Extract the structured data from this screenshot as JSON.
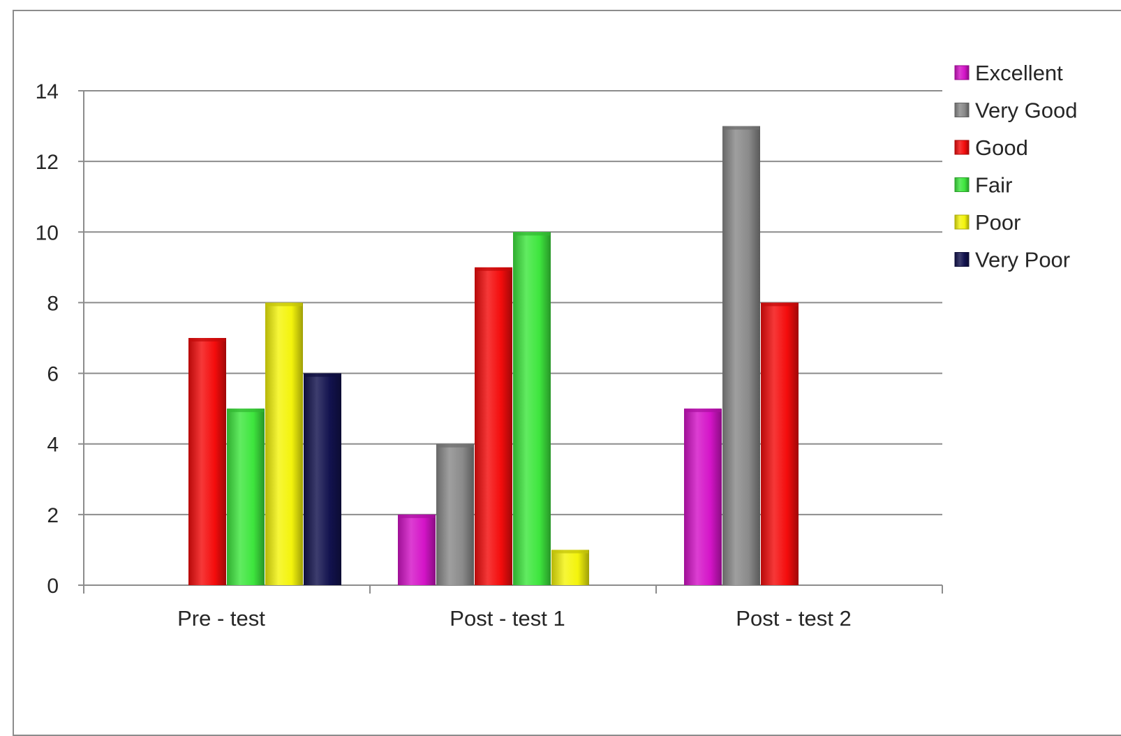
{
  "chart_data": {
    "type": "bar",
    "title": "",
    "xlabel": "",
    "ylabel": "",
    "categories": [
      "Pre - test",
      "Post - test 1",
      "Post - test 2"
    ],
    "ylim": [
      0,
      14
    ],
    "yticks": [
      0,
      2,
      4,
      6,
      8,
      10,
      12,
      14
    ],
    "grid": true,
    "legend_position": "top-right",
    "series": [
      {
        "name": "Excellent",
        "color": "#d414c8",
        "values": [
          0,
          2,
          5
        ]
      },
      {
        "name": "Very Good",
        "color": "#8a8a8a",
        "values": [
          0,
          4,
          13
        ]
      },
      {
        "name": "Good",
        "color": "#f40c0c",
        "values": [
          7,
          9,
          8
        ]
      },
      {
        "name": "Fair",
        "color": "#3ee63e",
        "values": [
          5,
          10,
          0
        ]
      },
      {
        "name": "Poor",
        "color": "#f4f40c",
        "values": [
          8,
          1,
          0
        ]
      },
      {
        "name": "Very Poor",
        "color": "#12124e",
        "values": [
          6,
          0,
          0
        ]
      }
    ]
  }
}
